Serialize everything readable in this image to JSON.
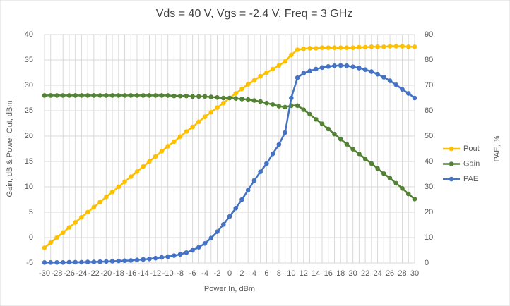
{
  "chart_data": {
    "type": "line",
    "title": "Vds = 40 V, Vgs = -2.4 V, Freq = 3 GHz",
    "xlabel": "Power In, dBm",
    "ylabel": "Gain, dB & Power Out, dBm",
    "y2label": "PAE, %",
    "x": [
      -30,
      -29,
      -28,
      -27,
      -26,
      -25,
      -24,
      -23,
      -22,
      -21,
      -20,
      -19,
      -18,
      -17,
      -16,
      -15,
      -14,
      -13,
      -12,
      -11,
      -10,
      -9,
      -8,
      -7,
      -6,
      -5,
      -4,
      -3,
      -2,
      -1,
      0,
      1,
      2,
      3,
      4,
      5,
      6,
      7,
      8,
      9,
      10,
      11,
      12,
      13,
      14,
      15,
      16,
      17,
      18,
      19,
      20,
      21,
      22,
      23,
      24,
      25,
      26,
      27,
      28,
      29,
      30
    ],
    "xlim": [
      -30,
      30
    ],
    "xticks": [
      -30,
      -28,
      -26,
      -24,
      -22,
      -20,
      -18,
      -16,
      -14,
      -12,
      -10,
      -8,
      -6,
      -4,
      -2,
      0,
      2,
      4,
      6,
      8,
      10,
      12,
      14,
      16,
      18,
      20,
      22,
      24,
      26,
      28,
      30
    ],
    "ylim": [
      -5,
      40
    ],
    "yticks": [
      -5,
      0,
      5,
      10,
      15,
      20,
      25,
      30,
      35,
      40
    ],
    "y2lim": [
      0,
      90
    ],
    "y2ticks": [
      0,
      10,
      20,
      30,
      40,
      50,
      60,
      70,
      80,
      90
    ],
    "grid": true,
    "legend": "right",
    "series": [
      {
        "name": "Pout",
        "color": "#ffc000",
        "values": [
          -2.0,
          -1.0,
          0,
          1.0,
          2.0,
          3.0,
          4.0,
          5.0,
          6.0,
          7.0,
          8.0,
          9.0,
          10.0,
          11.0,
          12.0,
          13.0,
          14.0,
          15.0,
          16.0,
          17.0,
          18.0,
          18.9,
          19.9,
          20.9,
          21.8,
          22.8,
          23.8,
          24.7,
          25.6,
          26.5,
          27.5,
          28.4,
          29.3,
          30.2,
          31.0,
          31.8,
          32.5,
          33.2,
          33.9,
          34.7,
          36.0,
          37.0,
          37.2,
          37.3,
          37.3,
          37.4,
          37.4,
          37.4,
          37.4,
          37.4,
          37.4,
          37.5,
          37.5,
          37.6,
          37.6,
          37.6,
          37.7,
          37.7,
          37.7,
          37.6,
          37.6
        ]
      },
      {
        "name": "Gain",
        "color": "#548235",
        "values": [
          28.0,
          28.0,
          28.0,
          28.0,
          28.0,
          28.0,
          28.0,
          28.0,
          28.0,
          28.0,
          28.0,
          28.0,
          28.0,
          28.0,
          28.0,
          28.0,
          28.0,
          28.0,
          28.0,
          28.0,
          28.0,
          27.9,
          27.9,
          27.9,
          27.8,
          27.8,
          27.8,
          27.7,
          27.6,
          27.5,
          27.5,
          27.4,
          27.3,
          27.2,
          27.0,
          26.8,
          26.5,
          26.2,
          25.9,
          25.7,
          26.0,
          26.0,
          25.2,
          24.3,
          23.3,
          22.4,
          21.4,
          20.4,
          19.4,
          18.4,
          17.4,
          16.5,
          15.5,
          14.6,
          13.6,
          12.6,
          11.7,
          10.7,
          9.7,
          8.6,
          7.6
        ]
      },
      {
        "name": "PAE",
        "color": "#4472c4",
        "axis": "y2",
        "values": [
          0.2,
          0.2,
          0.2,
          0.2,
          0.3,
          0.3,
          0.3,
          0.4,
          0.4,
          0.5,
          0.6,
          0.7,
          0.8,
          0.9,
          1.0,
          1.2,
          1.4,
          1.6,
          1.9,
          2.2,
          2.5,
          2.9,
          3.4,
          4.1,
          5.0,
          6.2,
          7.7,
          9.8,
          12.3,
          15.2,
          18.3,
          21.6,
          25.0,
          28.7,
          32.5,
          35.9,
          39.2,
          43.0,
          46.7,
          51.4,
          65.0,
          73.0,
          74.8,
          75.6,
          76.4,
          77.0,
          77.4,
          77.7,
          77.8,
          77.7,
          77.3,
          76.8,
          76.2,
          75.4,
          74.4,
          73.2,
          71.8,
          70.2,
          68.4,
          66.8,
          65.0
        ]
      }
    ]
  }
}
